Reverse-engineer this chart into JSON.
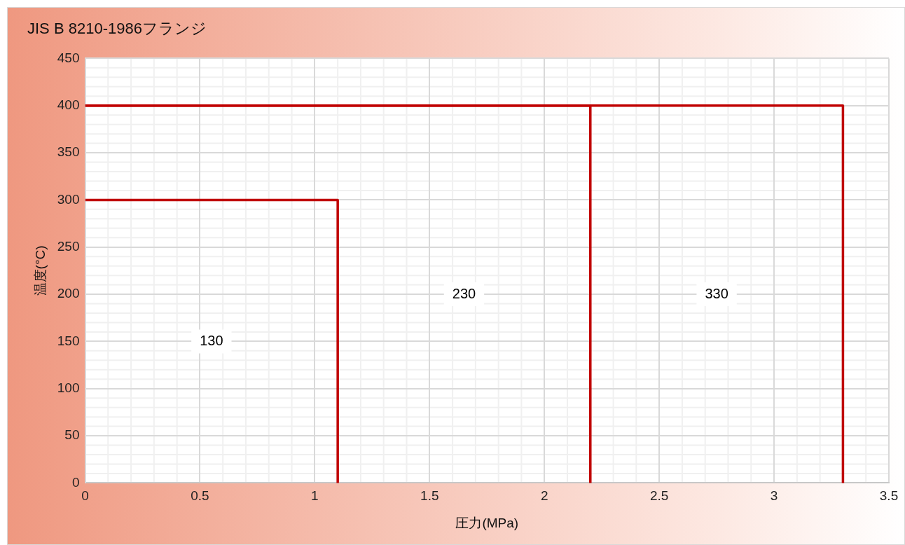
{
  "chart_data": {
    "type": "line",
    "title": "JIS B 8210-1986フランジ",
    "xlabel": "圧力(MPa)",
    "ylabel": "温度(°C)",
    "xlim": [
      0,
      3.5
    ],
    "xticks": [
      0,
      0.5,
      1,
      1.5,
      2,
      2.5,
      3,
      3.5
    ],
    "ylim": [
      0,
      450
    ],
    "yticks": [
      0,
      50,
      100,
      150,
      200,
      250,
      300,
      350,
      400,
      450
    ],
    "grid": true,
    "legend": false,
    "marker": "none",
    "line_style": "solid",
    "series": [
      {
        "color": "#c00000",
        "x": [
          0,
          1.1,
          1.1
        ],
        "values": [
          300,
          300,
          0
        ]
      },
      {
        "color": "#c00000",
        "x": [
          0,
          2.2,
          2.2
        ],
        "values": [
          400,
          400,
          0
        ]
      },
      {
        "color": "#c00000",
        "x": [
          0,
          3.3,
          3.3
        ],
        "values": [
          400,
          400,
          0
        ]
      }
    ],
    "annotations": [
      "130",
      "230",
      "330"
    ]
  }
}
